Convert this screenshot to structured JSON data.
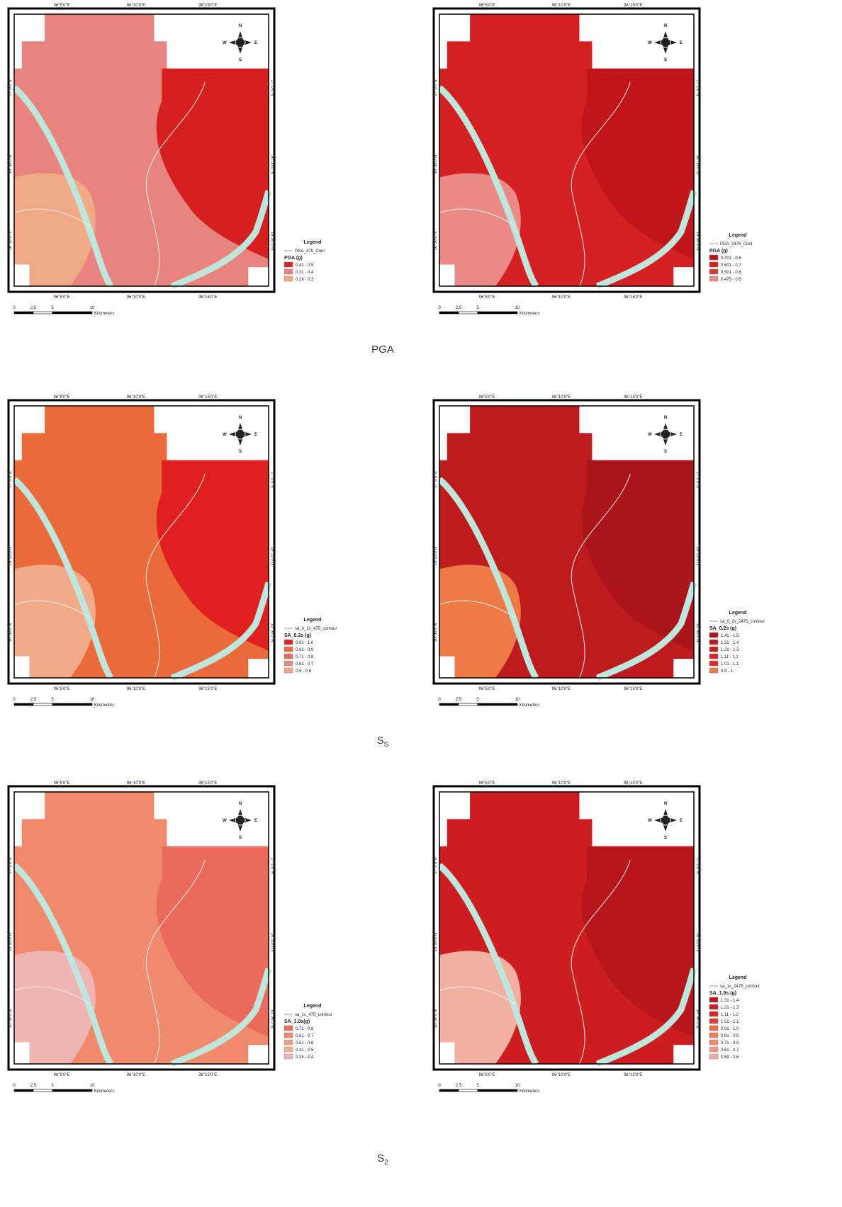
{
  "rows": [
    {
      "caption": {
        "text": "PGA"
      },
      "panels": [
        {
          "lon_labels": [
            "96°5'0\"E",
            "96°10'0\"E",
            "96°15'0\"E"
          ],
          "lat_labels": [
            "17°0'0\"N",
            "16°55'0\"N",
            "16°50'0\"N"
          ],
          "compass": [
            "N",
            "E",
            "S",
            "W"
          ],
          "legend": {
            "title": "Legend",
            "line_label": "PGA_475_Cont",
            "field": "PGA (g)",
            "classes": [
              {
                "label": "0.41 - 0.5",
                "color": "#d6201f"
              },
              {
                "label": "0.31 - 0.4",
                "color": "#e8837e"
              },
              {
                "label": "0.28 - 0.3",
                "color": "#f0a985"
              }
            ]
          },
          "scale": {
            "ticks": [
              "0",
              "2.5",
              "5",
              "10"
            ],
            "unit": "Kilometers"
          }
        },
        {
          "lon_labels": [
            "96°5'0\"E",
            "96°10'0\"E",
            "96°15'0\"E"
          ],
          "lat_labels": [
            "17°0'0\"N",
            "16°55'0\"N",
            "16°50'0\"N"
          ],
          "compass": [
            "N",
            "E",
            "S",
            "W"
          ],
          "legend": {
            "title": "Legend",
            "line_label": "PGA_2475_Cont",
            "field": "PGA (g)",
            "classes": [
              {
                "label": "0.701 - 0.8",
                "color": "#c0161b"
              },
              {
                "label": "0.601 - 0.7",
                "color": "#d42020"
              },
              {
                "label": "0.501 - 0.6",
                "color": "#df3a35"
              },
              {
                "label": "0.475 - 0.5",
                "color": "#ec8a88"
              }
            ]
          },
          "scale": {
            "ticks": [
              "0",
              "2.5",
              "5",
              "10"
            ],
            "unit": "Kilometers"
          }
        }
      ]
    },
    {
      "caption": {
        "text": "S",
        "subscript": "S"
      },
      "panels": [
        {
          "lon_labels": [
            "96°5'0\"E",
            "96°10'0\"E",
            "96°15'0\"E"
          ],
          "lat_labels": [
            "17°0'0\"N",
            "16°55'0\"N",
            "16°50'0\"N"
          ],
          "compass": [
            "N",
            "E",
            "S",
            "W"
          ],
          "legend": {
            "title": "Legend",
            "line_label": "sa_0_2s_475_contour",
            "field": "SA_0.2s (g)",
            "classes": [
              {
                "label": "0.91 - 1.0",
                "color": "#e0201e"
              },
              {
                "label": "0.81 - 0.9",
                "color": "#eb6a3a"
              },
              {
                "label": "0.71 - 0.8",
                "color": "#ea6b60"
              },
              {
                "label": "0.61 - 0.7",
                "color": "#ec8a84"
              },
              {
                "label": "0.5 - 0.6",
                "color": "#f2aa8a"
              }
            ]
          },
          "scale": {
            "ticks": [
              "0",
              "2.5",
              "5",
              "10"
            ],
            "unit": "Kilometers"
          }
        },
        {
          "lon_labels": [
            "96°5'0\"E",
            "96°10'0\"E",
            "96°15'0\"E"
          ],
          "lat_labels": [
            "17°0'0\"N",
            "16°55'0\"N",
            "16°50'0\"N"
          ],
          "compass": [
            "N",
            "E",
            "S",
            "W"
          ],
          "legend": {
            "title": "Legend",
            "line_label": "sa_0_2s_2475_contour",
            "field": "SA_0.2s (g)",
            "classes": [
              {
                "label": "1.41 - 1.5",
                "color": "#a9151a"
              },
              {
                "label": "1.31 - 1.4",
                "color": "#be1b1f"
              },
              {
                "label": "1.21 - 1.3",
                "color": "#cc1f22"
              },
              {
                "label": "1.11 - 1.2",
                "color": "#d92424"
              },
              {
                "label": "1.01 - 1.1",
                "color": "#e42a26"
              },
              {
                "label": "0.9 - 1",
                "color": "#ee7a45"
              }
            ]
          },
          "scale": {
            "ticks": [
              "0",
              "2.5",
              "5",
              "10"
            ],
            "unit": "Kilometers"
          }
        }
      ]
    },
    {
      "caption": {
        "text": "S",
        "subscript": "2"
      },
      "panels": [
        {
          "lon_labels": [
            "96°5'0\"E",
            "96°10'0\"E",
            "96°15'0\"E"
          ],
          "lat_labels": [
            "17°0'0\"N",
            "16°55'0\"N",
            "16°50'0\"N"
          ],
          "compass": [
            "N",
            "E",
            "S",
            "W"
          ],
          "legend": {
            "title": "Legend",
            "line_label": "sa_1s_475_contour",
            "field": "SA_1.0s(g)",
            "classes": [
              {
                "label": "0.71 - 0.8",
                "color": "#ea6a5c"
              },
              {
                "label": "0.61 - 0.7",
                "color": "#ef8a6c"
              },
              {
                "label": "0.51 - 0.6",
                "color": "#f3a07e"
              },
              {
                "label": "0.41 - 0.5",
                "color": "#f5b394"
              },
              {
                "label": "0.33 - 0.4",
                "color": "#f0b5b3"
              }
            ]
          },
          "scale": {
            "ticks": [
              "0",
              "2.5",
              "5",
              "10"
            ],
            "unit": "Kilometers"
          }
        },
        {
          "lon_labels": [
            "96°5'0\"E",
            "96°10'0\"E",
            "96°15'0\"E"
          ],
          "lat_labels": [
            "17°0'0\"N",
            "16°55'0\"N",
            "16°50'0\"N"
          ],
          "compass": [
            "N",
            "E",
            "S",
            "W"
          ],
          "legend": {
            "title": "Legend",
            "line_label": "sa_1s_2475_contour",
            "field": "SA_1.0s (g)",
            "classes": [
              {
                "label": "1.31 - 1.4",
                "color": "#b8161b"
              },
              {
                "label": "1.21 - 1.3",
                "color": "#cc1e20"
              },
              {
                "label": "1.11 - 1.2",
                "color": "#dc2424"
              },
              {
                "label": "1.01 - 1.1",
                "color": "#e5372e"
              },
              {
                "label": "0.91 - 1.0",
                "color": "#ec6a3c"
              },
              {
                "label": "0.81 - 0.9",
                "color": "#ee7d52"
              },
              {
                "label": "0.71 - 0.8",
                "color": "#ee8a70"
              },
              {
                "label": "0.61 - 0.7",
                "color": "#ef9a86"
              },
              {
                "label": "0.59 - 0.6",
                "color": "#f2b0a0"
              }
            ]
          },
          "scale": {
            "ticks": [
              "0",
              "2.5",
              "5",
              "10"
            ],
            "unit": "Kilometers"
          }
        }
      ]
    }
  ]
}
